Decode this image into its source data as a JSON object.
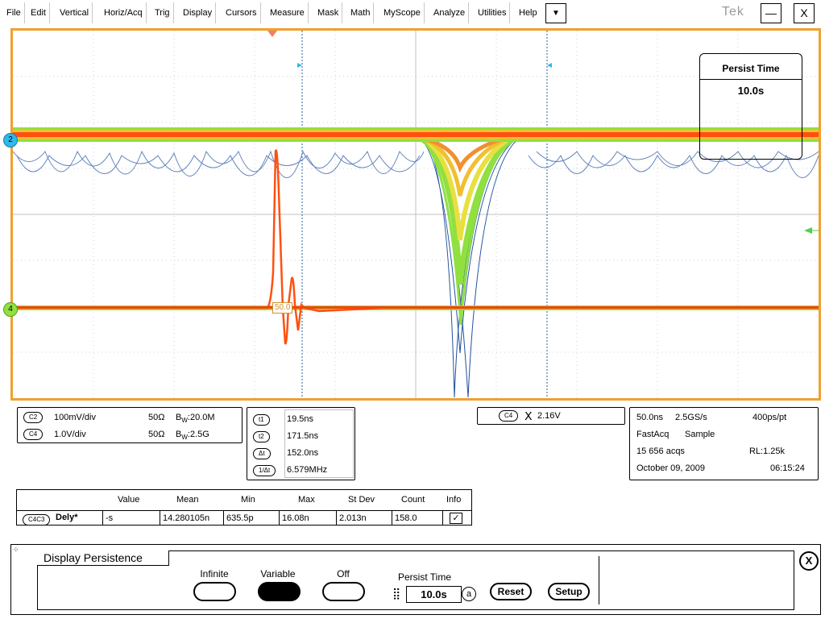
{
  "menu": {
    "items": [
      "File",
      "Edit",
      "Vertical",
      "Horiz/Acq",
      "Trig",
      "Display",
      "Cursors",
      "Measure",
      "Mask",
      "Math",
      "MyScope",
      "Analyze",
      "Utilities",
      "Help"
    ],
    "dropdown_glyph": "▼",
    "brand": "Tek",
    "minimize": "—",
    "close": "X"
  },
  "screen": {
    "markers": {
      "ch2": "2",
      "ch4": "4"
    },
    "persist_box": {
      "title": "Persist Time",
      "value": "10.0s"
    },
    "ch4_level_label": "50.0"
  },
  "channels": [
    {
      "tag": "C2",
      "scale": "100mV/div",
      "impedance": "50Ω",
      "bw_prefix": "B",
      "bw_sub": "W",
      "bw": ":20.0M"
    },
    {
      "tag": "C4",
      "scale": "1.0V/div",
      "impedance": "50Ω",
      "bw_prefix": "B",
      "bw_sub": "W",
      "bw": ":2.5G"
    }
  ],
  "cursors": [
    {
      "tag": "t1",
      "value": "19.5ns"
    },
    {
      "tag": "t2",
      "value": "171.5ns"
    },
    {
      "tag": "Δt",
      "value": "152.0ns"
    },
    {
      "tag": "1/Δt",
      "value": "6.579MHz"
    }
  ],
  "trigger": {
    "tag": "C4",
    "symbol": "Ⅹ",
    "level": "2.16V"
  },
  "acq": {
    "timebase": "50.0ns",
    "rate": "2.5GS/s",
    "resolution": "400ps/pt",
    "mode": "FastAcq",
    "sample": "Sample",
    "acqs": "15 656 acqs",
    "record": "RL:1.25k",
    "date": "October 09, 2009",
    "time": "06:15:24"
  },
  "measurement": {
    "headers": [
      "Value",
      "Mean",
      "Min",
      "Max",
      "St Dev",
      "Count",
      "Info"
    ],
    "tag": "C4C3",
    "name": "Dely*",
    "values": [
      "-s",
      "14.280105n",
      "635.5p",
      "16.08n",
      "2.013n",
      "158.0"
    ]
  },
  "control": {
    "title": "Display Persistence",
    "options": [
      "Infinite",
      "Variable",
      "Off"
    ],
    "selected": "Variable",
    "persist_label": "Persist Time",
    "persist_value": "10.0s",
    "reset": "Reset",
    "setup": "Setup",
    "close": "X"
  },
  "colors": {
    "screen_border": "#f0a030",
    "ch2_trace": "#ff5010",
    "ch4_trace": "#ff4010",
    "ch2_marker": "#30b8e8",
    "ch4_marker": "#90e040",
    "cursor": "#2060a0"
  }
}
